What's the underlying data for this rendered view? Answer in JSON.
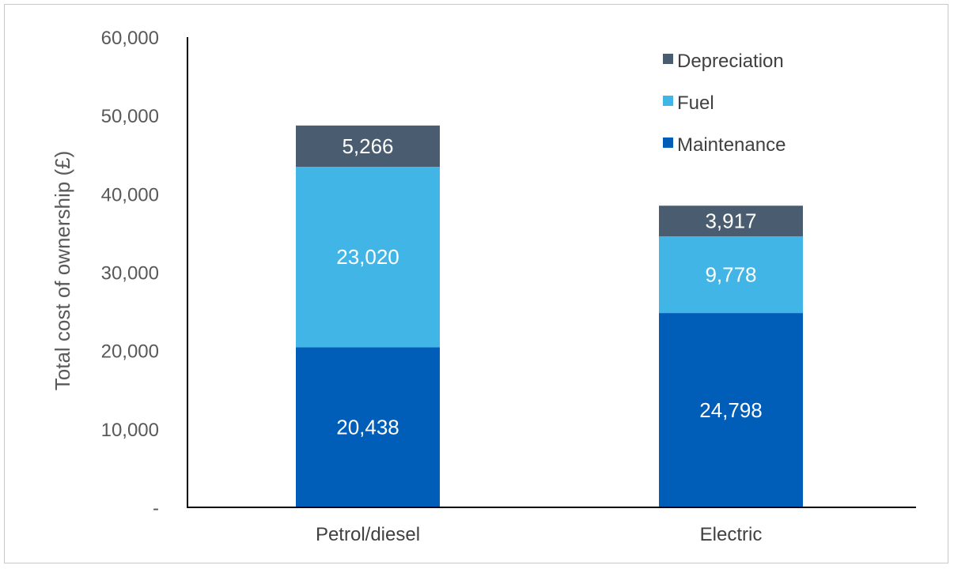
{
  "chart_data": {
    "type": "bar",
    "stacked": true,
    "categories": [
      "Petrol/diesel",
      "Electric"
    ],
    "series": [
      {
        "name": "Maintenance",
        "color": "#005EB8",
        "values": [
          20438,
          24798
        ]
      },
      {
        "name": "Fuel",
        "color": "#41B6E6",
        "values": [
          23020,
          9778
        ]
      },
      {
        "name": "Depreciation",
        "color": "#4A5D70",
        "values": [
          5266,
          3917
        ]
      }
    ],
    "data_labels": [
      [
        "20,438",
        "24,798"
      ],
      [
        "23,020",
        "9,778"
      ],
      [
        "5,266",
        "3,917"
      ]
    ],
    "ylabel": "Total cost of ownership (£)",
    "ylim": [
      0,
      60000
    ],
    "yticks": [
      0,
      10000,
      20000,
      30000,
      40000,
      50000,
      60000
    ],
    "ytick_labels": [
      "-",
      "10,000",
      "20,000",
      "30,000",
      "40,000",
      "50,000",
      "60,000"
    ],
    "grid": false,
    "legend_position": "top-right",
    "legend_order": [
      "Depreciation",
      "Fuel",
      "Maintenance"
    ]
  }
}
